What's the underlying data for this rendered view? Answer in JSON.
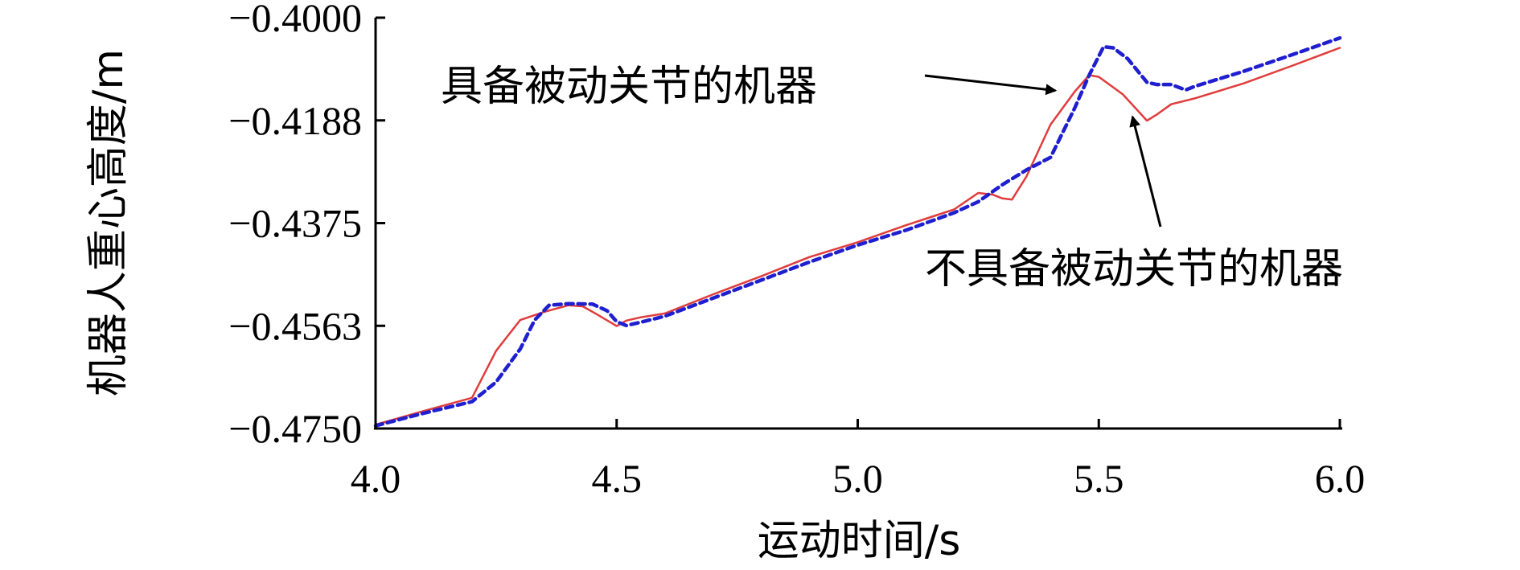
{
  "chart_data": {
    "type": "line",
    "xlabel": "运动时间/s",
    "ylabel": "机器人重心高度/m",
    "xlim": [
      4.0,
      6.0
    ],
    "ylim": [
      -0.475,
      -0.4
    ],
    "x_ticks": [
      "4.0",
      "4.5",
      "5.0",
      "5.5",
      "6.0"
    ],
    "y_ticks": [
      "−0.4000",
      "−0.4188",
      "−0.4375",
      "−0.4563",
      "−0.4750"
    ],
    "grid": false,
    "series": [
      {
        "name": "具备被动关节的机器",
        "color": "#1f1fd0",
        "style": "dashed",
        "x": [
          4.0,
          4.1,
          4.2,
          4.25,
          4.3,
          4.33,
          4.36,
          4.4,
          4.45,
          4.48,
          4.5,
          4.52,
          4.55,
          4.6,
          4.7,
          4.8,
          4.9,
          5.0,
          5.1,
          5.2,
          5.25,
          5.3,
          5.35,
          5.4,
          5.45,
          5.48,
          5.51,
          5.53,
          5.56,
          5.6,
          5.62,
          5.65,
          5.68,
          5.7,
          5.8,
          5.9,
          6.0
        ],
        "y": [
          -0.4745,
          -0.4722,
          -0.4701,
          -0.4665,
          -0.4605,
          -0.4552,
          -0.4525,
          -0.4522,
          -0.4523,
          -0.4535,
          -0.4555,
          -0.4562,
          -0.4556,
          -0.4545,
          -0.4512,
          -0.4479,
          -0.4446,
          -0.4415,
          -0.4388,
          -0.4356,
          -0.4336,
          -0.4305,
          -0.4278,
          -0.4255,
          -0.4165,
          -0.4105,
          -0.4053,
          -0.4055,
          -0.4075,
          -0.4118,
          -0.4122,
          -0.4122,
          -0.4132,
          -0.4125,
          -0.4098,
          -0.4068,
          -0.4037
        ]
      },
      {
        "name": "不具备被动关节的机器",
        "color": "#e03c3c",
        "style": "solid",
        "x": [
          4.0,
          4.1,
          4.2,
          4.25,
          4.3,
          4.35,
          4.4,
          4.43,
          4.46,
          4.5,
          4.52,
          4.55,
          4.6,
          4.7,
          4.8,
          4.9,
          5.0,
          5.1,
          5.2,
          5.25,
          5.28,
          5.3,
          5.32,
          5.35,
          5.4,
          5.45,
          5.48,
          5.5,
          5.55,
          5.6,
          5.62,
          5.65,
          5.7,
          5.8,
          5.9,
          6.0
        ],
        "y": [
          -0.4743,
          -0.4718,
          -0.4694,
          -0.4608,
          -0.4552,
          -0.4537,
          -0.4525,
          -0.4527,
          -0.4542,
          -0.4563,
          -0.4553,
          -0.4547,
          -0.454,
          -0.4505,
          -0.4472,
          -0.4437,
          -0.441,
          -0.4379,
          -0.435,
          -0.432,
          -0.4323,
          -0.433,
          -0.4332,
          -0.429,
          -0.4195,
          -0.4135,
          -0.4105,
          -0.4108,
          -0.414,
          -0.4188,
          -0.4177,
          -0.4158,
          -0.4147,
          -0.412,
          -0.4088,
          -0.4055
        ]
      }
    ],
    "annotations": [
      {
        "text": "具备被动关节的机器",
        "target_series": 0,
        "target_x": 5.41,
        "target_y": -0.4133
      },
      {
        "text": "不具备被动关节的机器",
        "target_series": 1,
        "target_x": 5.57,
        "target_y": -0.4181
      }
    ]
  }
}
